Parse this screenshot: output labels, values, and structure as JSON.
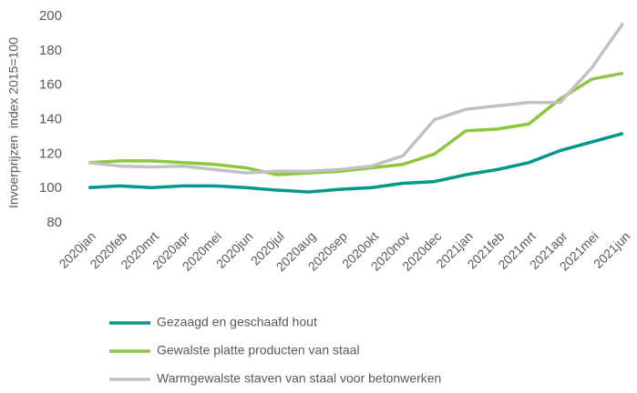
{
  "chart_data": {
    "type": "line",
    "y_label": "Invoerprijzen  index 2015=100",
    "categories": [
      "2020jan",
      "2020feb",
      "2020mrt",
      "2020apr",
      "2020mei",
      "2020jun",
      "2020jul",
      "2020aug",
      "2020sep",
      "2020okt",
      "2020nov",
      "2020dec",
      "2021jan",
      "2021feb",
      "2021mrt",
      "2021apr",
      "2021mei",
      "2021jun"
    ],
    "series": [
      {
        "name": "Gezaagd en geschaafd hout",
        "color": "#00988a",
        "values": [
          100.5,
          101.5,
          100.5,
          101.5,
          101.5,
          100.5,
          99,
          98,
          99.5,
          100.5,
          103,
          104,
          108,
          111,
          115,
          122,
          127,
          132
        ]
      },
      {
        "name": "Gewalste platte producten van staal",
        "color": "#8dc63f",
        "values": [
          115,
          116,
          116,
          115,
          114,
          112,
          108,
          109,
          110,
          112,
          114,
          120,
          133.5,
          134.5,
          137.5,
          152,
          163.5,
          167
        ]
      },
      {
        "name": "Warmgewalste staven van staal voor betonwerken",
        "color": "#bfc1c3",
        "values": [
          115,
          113,
          112.5,
          113,
          111,
          109,
          110,
          110,
          111,
          113,
          119,
          140,
          146,
          148,
          150,
          150,
          170,
          196
        ]
      }
    ],
    "ylim": [
      80,
      200
    ],
    "yticks": [
      80,
      100,
      120,
      140,
      160,
      180,
      200
    ],
    "grid": false
  }
}
